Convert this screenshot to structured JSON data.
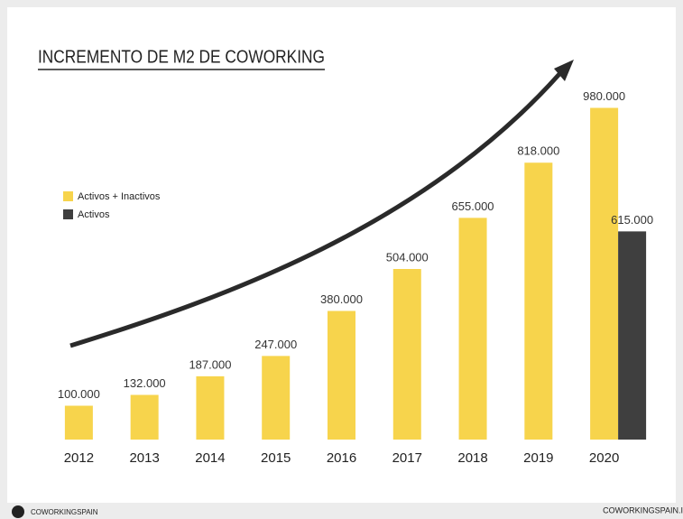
{
  "chart_data": {
    "type": "bar",
    "title": "INCREMENTO DE M2 DE COWORKING",
    "categories": [
      "2012",
      "2013",
      "2014",
      "2015",
      "2016",
      "2017",
      "2018",
      "2019",
      "2020"
    ],
    "series": [
      {
        "name": "Activos + Inactivos",
        "color": "#f7d44c",
        "values": [
          100000,
          132000,
          187000,
          247000,
          380000,
          504000,
          655000,
          818000,
          980000
        ],
        "value_labels": [
          "100.000",
          "132.000",
          "187.000",
          "247.000",
          "380.000",
          "504.000",
          "655.000",
          "818.000",
          "980.000"
        ]
      },
      {
        "name": "Activos",
        "color": "#3f3f3f",
        "values": [
          null,
          null,
          null,
          null,
          null,
          null,
          null,
          null,
          615000
        ],
        "value_labels": [
          null,
          null,
          null,
          null,
          null,
          null,
          null,
          null,
          "615.000"
        ]
      }
    ],
    "ylim": [
      0,
      1000000
    ],
    "legend": "upper left",
    "footer_left": "COWORKINGSPAIN",
    "footer_right": "COWORKINGSPAIN.I"
  }
}
